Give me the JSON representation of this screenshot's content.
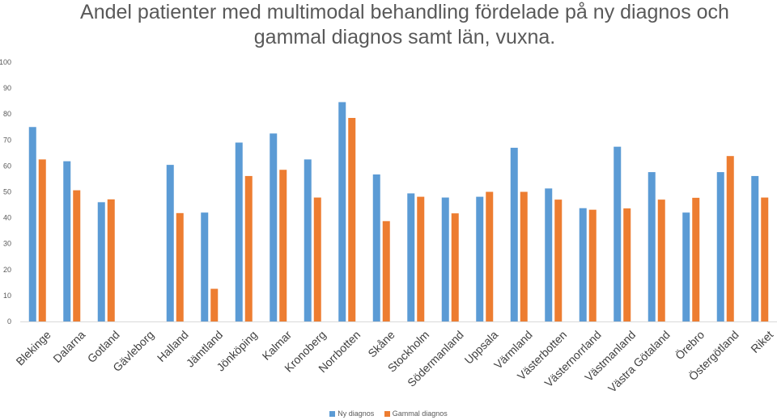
{
  "chart_data": {
    "type": "bar",
    "title": "Andel patienter med multimodal behandling fördelade på ny diagnos och gammal diagnos samt län, vuxna.",
    "xlabel": "",
    "ylabel": "",
    "ylim": [
      0,
      100
    ],
    "yticks": [
      0,
      10,
      20,
      30,
      40,
      50,
      60,
      70,
      80,
      90,
      100
    ],
    "grid": false,
    "legend_position": "bottom",
    "categories": [
      "Blekinge",
      "Dalarna",
      "Gotland",
      "Gävleborg",
      "Halland",
      "Jämtland",
      "Jönköping",
      "Kalmar",
      "Kronoberg",
      "Norrbotten",
      "Skåne",
      "Stockholm",
      "Södermanland",
      "Uppsala",
      "Värmland",
      "Västerbotten",
      "Västernorrland",
      "Västmanland",
      "Västra Götaland",
      "Örebro",
      "Östergötland",
      "Riket"
    ],
    "series": [
      {
        "name": "Ny diagnos",
        "color": "#5B9BD5",
        "values": [
          75,
          61.8,
          46,
          null,
          60.4,
          42,
          69,
          72.5,
          62.5,
          84.6,
          56.7,
          49.4,
          47.8,
          48.1,
          67,
          51.3,
          43.7,
          67.4,
          57.6,
          42,
          57.6,
          56.1
        ]
      },
      {
        "name": "Gammal diagnos",
        "color": "#ED7D31",
        "values": [
          62.5,
          50.6,
          47.1,
          null,
          41.8,
          12.6,
          56.1,
          58.5,
          47.8,
          78.5,
          38.7,
          48.1,
          41.7,
          50,
          50,
          47,
          43.1,
          43.6,
          47,
          47.7,
          63.8,
          47.8
        ]
      }
    ]
  }
}
